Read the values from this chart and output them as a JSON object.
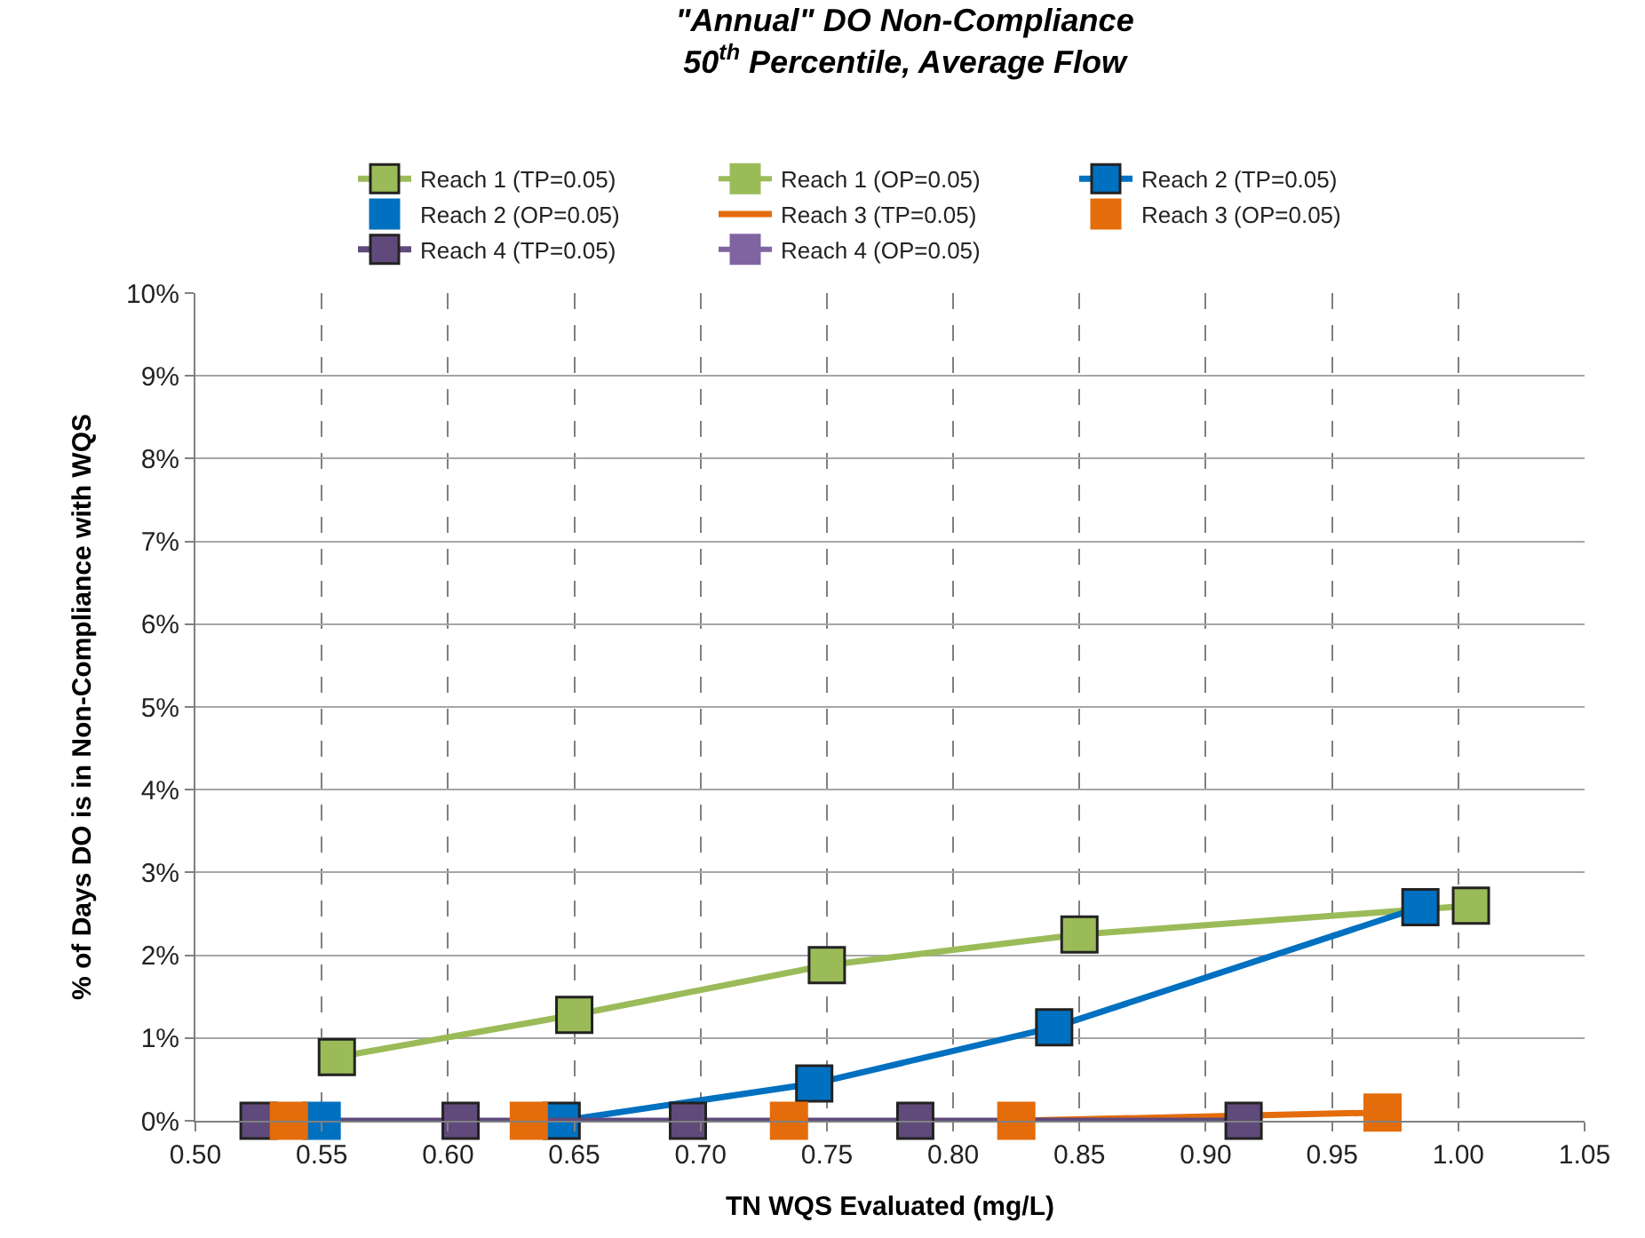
{
  "chart_data": {
    "type": "line",
    "title": "\"Annual\" DO Non-Compliance",
    "subtitle": "50$^{th}$ Percentile, Average Flow",
    "xlabel": "TN WQS Evaluated (mg/L)",
    "ylabel": "% of Days DO is in Non-Compliance with WQS",
    "xlim": [
      0.5,
      1.05
    ],
    "xticks": [
      {
        "value": 0.5,
        "label": "0.50"
      },
      {
        "value": 0.55,
        "label": "0.55"
      },
      {
        "value": 0.6,
        "label": "0.60"
      },
      {
        "value": 0.65,
        "label": "0.65"
      },
      {
        "value": 0.7,
        "label": "0.70"
      },
      {
        "value": 0.75,
        "label": "0.75"
      },
      {
        "value": 0.8,
        "label": "0.80"
      },
      {
        "value": 0.85,
        "label": "0.85"
      },
      {
        "value": 0.9,
        "label": "0.90"
      },
      {
        "value": 0.95,
        "label": "0.95"
      },
      {
        "value": 1.0,
        "label": "1.00"
      },
      {
        "value": 1.05,
        "label": "1.05"
      }
    ],
    "ylim": [
      0,
      10
    ],
    "yticks": [
      {
        "value": 0,
        "label": "0%"
      },
      {
        "value": 1,
        "label": "1%"
      },
      {
        "value": 2,
        "label": "2%"
      },
      {
        "value": 3,
        "label": "3%"
      },
      {
        "value": 4,
        "label": "4%"
      },
      {
        "value": 5,
        "label": "5%"
      },
      {
        "value": 6,
        "label": "6%"
      },
      {
        "value": 7,
        "label": "7%"
      },
      {
        "value": 8,
        "label": "8%"
      },
      {
        "value": 9,
        "label": "9%"
      },
      {
        "value": 10,
        "label": "10%"
      }
    ],
    "grid": true,
    "legend": "top",
    "marker": "square",
    "line_style": "solid",
    "series": [
      {
        "name": "Reach 1 (TP=0.05)",
        "color": "#9bbb59",
        "x": [
          0.556,
          0.65,
          0.75,
          0.85,
          1.005
        ],
        "values": [
          0.77,
          1.28,
          1.88,
          2.25,
          2.6
        ]
      },
      {
        "name": "Reach 1 (OP=0.05)",
        "color": "#9bbb59"
      },
      {
        "name": "Reach 2 (TP=0.05)",
        "color": "#0070c0",
        "x": [
          0.645,
          0.745,
          0.84,
          0.985
        ],
        "values": [
          0,
          0.45,
          1.13,
          2.58
        ]
      },
      {
        "name": "Reach 2 (OP=0.05)",
        "type": "scatter",
        "color": "#0070c0",
        "x": [
          0.55
        ],
        "values": [
          0
        ]
      },
      {
        "name": "Reach 3 (TP=0.05)",
        "color": "#e46c0a",
        "marker": "none",
        "x": [
          0.825,
          0.97
        ],
        "values": [
          0,
          0.1
        ]
      },
      {
        "name": "Reach 3 (OP=0.05)",
        "type": "scatter",
        "color": "#e46c0a",
        "x": [
          0.537,
          0.632,
          0.735,
          0.825,
          0.97
        ],
        "values": [
          0,
          0,
          0,
          0,
          0.1
        ]
      },
      {
        "name": "Reach 4 (TP=0.05)",
        "color": "#604a7b",
        "x": [
          0.525,
          0.605,
          0.695,
          0.785,
          0.915
        ],
        "values": [
          0,
          0,
          0,
          0,
          0
        ]
      },
      {
        "name": "Reach 4 (OP=0.05)",
        "color": "#8064a2"
      }
    ]
  }
}
